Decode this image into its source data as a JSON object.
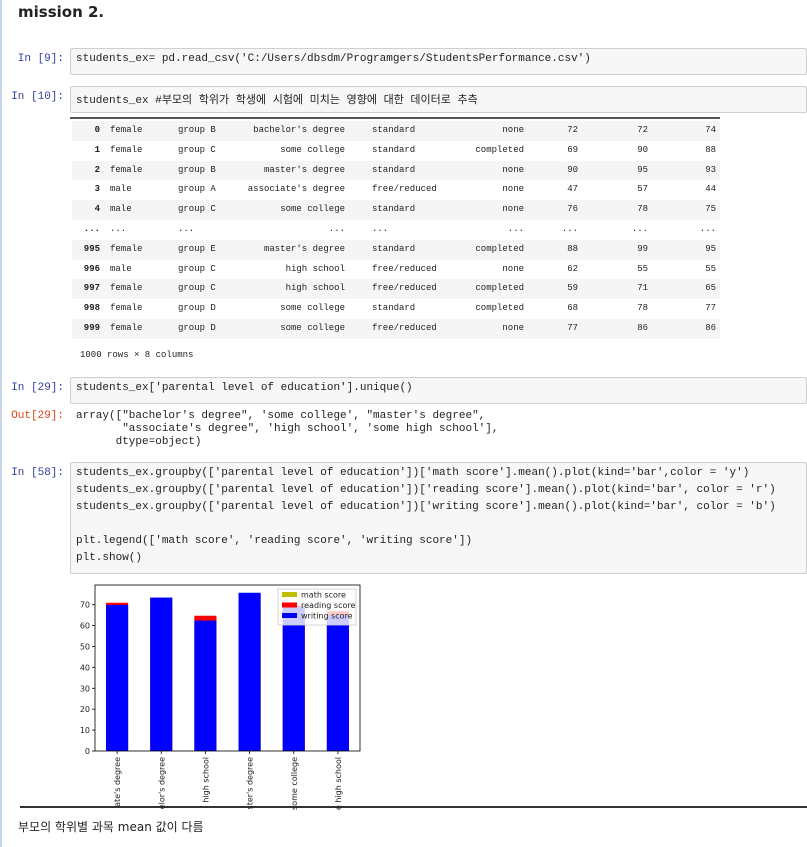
{
  "heading": "mission 2.",
  "cells": [
    {
      "prompt": "In [9]:",
      "code": [
        [
          "students_ex= pd.read_csv('C:/Users/dbsdm/Programgers/StudentsPerformance.csv')"
        ]
      ]
    },
    {
      "prompt": "In [10]:",
      "code": [
        [
          "students_ex #부모의 학위가 학생에 시험에 미치는 영향에 대한 데이터로 추측"
        ]
      ]
    },
    {
      "prompt": "In [29]:",
      "code": [
        [
          "students_ex['parental level of education'].unique()"
        ]
      ]
    },
    {
      "prompt": "In [58]:",
      "code": [
        [
          "students_ex.groupby(['parental level of education'])['math score'].mean().plot(kind='bar',color = 'y')",
          "students_ex.groupby(['parental level of education'])['reading score'].mean().plot(kind='bar', color = 'r')",
          "students_ex.groupby(['parental level of education'])['writing score'].mean().plot(kind='bar', color = 'b')"
        ],
        [
          "plt.legend(['math score', 'reading score', 'writing score'])",
          "plt.show()"
        ]
      ]
    }
  ],
  "table": {
    "rows": [
      [
        "0",
        "female",
        "group B",
        "bachelor's degree",
        "standard",
        "none",
        "72",
        "72",
        "74"
      ],
      [
        "1",
        "female",
        "group C",
        "some college",
        "standard",
        "completed",
        "69",
        "90",
        "88"
      ],
      [
        "2",
        "female",
        "group B",
        "master's degree",
        "standard",
        "none",
        "90",
        "95",
        "93"
      ],
      [
        "3",
        "male",
        "group A",
        "associate's degree",
        "free/reduced",
        "none",
        "47",
        "57",
        "44"
      ],
      [
        "4",
        "male",
        "group C",
        "some college",
        "standard",
        "none",
        "76",
        "78",
        "75"
      ],
      [
        "...",
        "...",
        "...",
        "...",
        "...",
        "...",
        "...",
        "...",
        "..."
      ],
      [
        "995",
        "female",
        "group E",
        "master's degree",
        "standard",
        "completed",
        "88",
        "99",
        "95"
      ],
      [
        "996",
        "male",
        "group C",
        "high school",
        "free/reduced",
        "none",
        "62",
        "55",
        "55"
      ],
      [
        "997",
        "female",
        "group C",
        "high school",
        "free/reduced",
        "completed",
        "59",
        "71",
        "65"
      ],
      [
        "998",
        "female",
        "group D",
        "some college",
        "standard",
        "completed",
        "68",
        "78",
        "77"
      ],
      [
        "999",
        "female",
        "group D",
        "some college",
        "free/reduced",
        "none",
        "77",
        "86",
        "86"
      ]
    ],
    "footer": "1000 rows × 8 columns"
  },
  "output": {
    "prompt": "Out[29]:",
    "lines": [
      "array([\"bachelor's degree\", 'some college', \"master's degree\",",
      "       \"associate's degree\", 'high school', 'some high school'],",
      "      dtype=object)"
    ]
  },
  "chart_data": {
    "type": "bar",
    "categories": [
      "ate's degree",
      "elor's degree",
      "high school",
      "ster's degree",
      "some college",
      "e high school"
    ],
    "series": [
      {
        "name": "math score",
        "color": "#bfbf00",
        "values": [
          67.9,
          69.4,
          62.1,
          69.7,
          67.1,
          63.5
        ]
      },
      {
        "name": "reading score",
        "color": "#ff0000",
        "values": [
          70.9,
          73.0,
          64.7,
          75.4,
          69.5,
          66.9
        ]
      },
      {
        "name": "writing score",
        "color": "#0000ff",
        "values": [
          69.9,
          73.4,
          62.4,
          75.7,
          68.8,
          64.9
        ]
      }
    ],
    "ylim": [
      0,
      79.4
    ],
    "yticks": [
      0,
      10,
      20,
      30,
      40,
      50,
      60,
      70
    ],
    "legend": "upper right"
  },
  "note": "부모의 학위별 과목 mean 값이 다름"
}
